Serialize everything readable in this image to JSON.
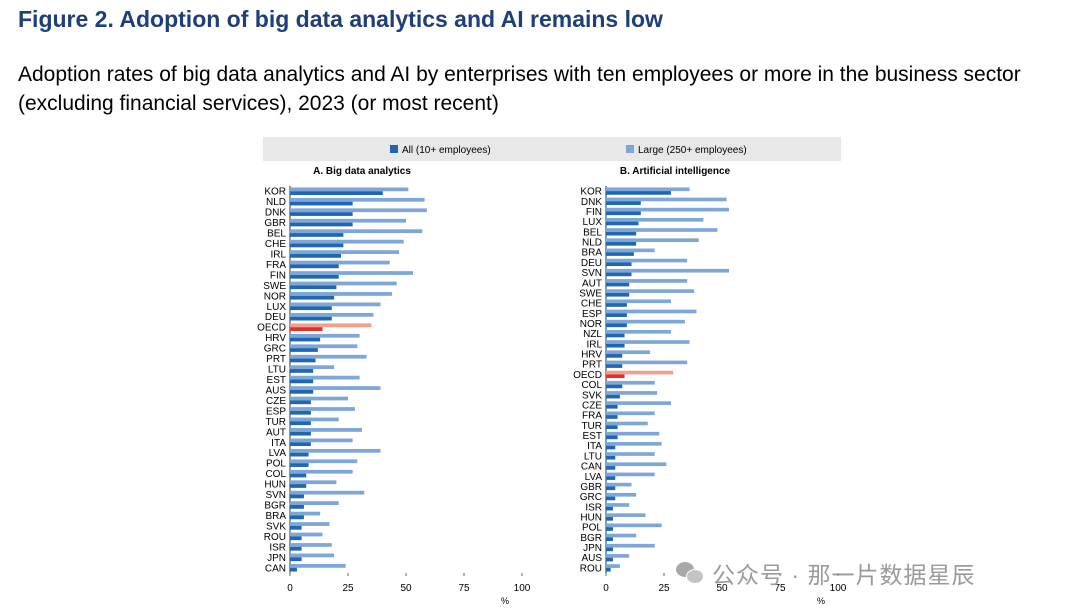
{
  "figure": {
    "title": "Figure 2. Adoption of big data analytics and AI remains low",
    "subtitle": "Adoption rates of big data analytics and AI by enterprises with ten employees or more in the business sector (excluding financial services), 2023 (or most recent)"
  },
  "legend": {
    "items": [
      {
        "label": "All (10+ employees)",
        "color": "#1f67b0"
      },
      {
        "label": "Large (250+ employees)",
        "color": "#7ea6d8"
      }
    ],
    "placement": "top"
  },
  "colors": {
    "all": "#1f67b0",
    "large": "#7ea6d8",
    "oecd_all": "#e0302c",
    "oecd_large": "#f3a08a",
    "legend_bg": "#e8e8e8",
    "title": "#1f3f7a"
  },
  "watermark": {
    "text": "公众号 · 那一片数据星辰",
    "icon": "wechat-icon"
  },
  "chart_data": [
    {
      "type": "bar",
      "orientation": "horizontal",
      "title": "A. Big data analytics",
      "xlabel": "%",
      "xlim": [
        0,
        100
      ],
      "xticks": [
        0,
        25,
        50,
        75,
        100
      ],
      "grid": false,
      "highlight": "OECD",
      "categories": [
        "KOR",
        "NLD",
        "DNK",
        "GBR",
        "BEL",
        "CHE",
        "IRL",
        "FRA",
        "FIN",
        "SWE",
        "NOR",
        "LUX",
        "DEU",
        "OECD",
        "HRV",
        "GRC",
        "PRT",
        "LTU",
        "EST",
        "AUS",
        "CZE",
        "ESP",
        "TUR",
        "AUT",
        "ITA",
        "LVA",
        "POL",
        "COL",
        "HUN",
        "SVN",
        "BGR",
        "BRA",
        "SVK",
        "ROU",
        "ISR",
        "JPN",
        "CAN"
      ],
      "series": [
        {
          "name": "Large (250+ employees)",
          "values": [
            51,
            58,
            59,
            50,
            57,
            49,
            47,
            43,
            53,
            46,
            44,
            39,
            36,
            35,
            30,
            29,
            33,
            19,
            30,
            39,
            25,
            28,
            21,
            31,
            27,
            39,
            29,
            27,
            20,
            32,
            21,
            13,
            17,
            14,
            18,
            19,
            24
          ]
        },
        {
          "name": "All (10+ employees)",
          "values": [
            40,
            27,
            27,
            27,
            23,
            23,
            22,
            21,
            21,
            20,
            19,
            18,
            18,
            14,
            13,
            12,
            11,
            10,
            10,
            10,
            9,
            9,
            9,
            9,
            9,
            8,
            8,
            7,
            7,
            6,
            6,
            6,
            5,
            5,
            5,
            5,
            3
          ]
        }
      ]
    },
    {
      "type": "bar",
      "orientation": "horizontal",
      "title": "B. Artificial intelligence",
      "xlabel": "%",
      "xlim": [
        0,
        100
      ],
      "xticks": [
        0,
        25,
        50,
        75,
        100
      ],
      "grid": false,
      "highlight": "OECD",
      "categories": [
        "KOR",
        "DNK",
        "FIN",
        "LUX",
        "BEL",
        "NLD",
        "BRA",
        "DEU",
        "SVN",
        "AUT",
        "SWE",
        "CHE",
        "ESP",
        "NOR",
        "NZL",
        "IRL",
        "HRV",
        "PRT",
        "OECD",
        "COL",
        "SVK",
        "CZE",
        "FRA",
        "TUR",
        "EST",
        "ITA",
        "LTU",
        "CAN",
        "LVA",
        "GBR",
        "GRC",
        "ISR",
        "HUN",
        "POL",
        "BGR",
        "JPN",
        "AUS",
        "ROU"
      ],
      "series": [
        {
          "name": "Large (250+ employees)",
          "values": [
            36,
            52,
            53,
            42,
            48,
            40,
            21,
            35,
            53,
            35,
            38,
            28,
            39,
            34,
            28,
            36,
            19,
            35,
            29,
            21,
            22,
            28,
            21,
            18,
            23,
            24,
            21,
            26,
            21,
            11,
            13,
            10,
            17,
            24,
            13,
            21,
            10,
            6
          ]
        },
        {
          "name": "All (10+ employees)",
          "values": [
            28,
            15,
            15,
            14,
            13,
            13,
            12,
            11,
            11,
            10,
            10,
            9,
            9,
            9,
            8,
            8,
            7,
            7,
            8,
            7,
            6,
            5,
            5,
            5,
            5,
            4,
            4,
            4,
            4,
            4,
            4,
            3,
            3,
            3,
            3,
            3,
            3,
            2
          ]
        }
      ]
    }
  ]
}
